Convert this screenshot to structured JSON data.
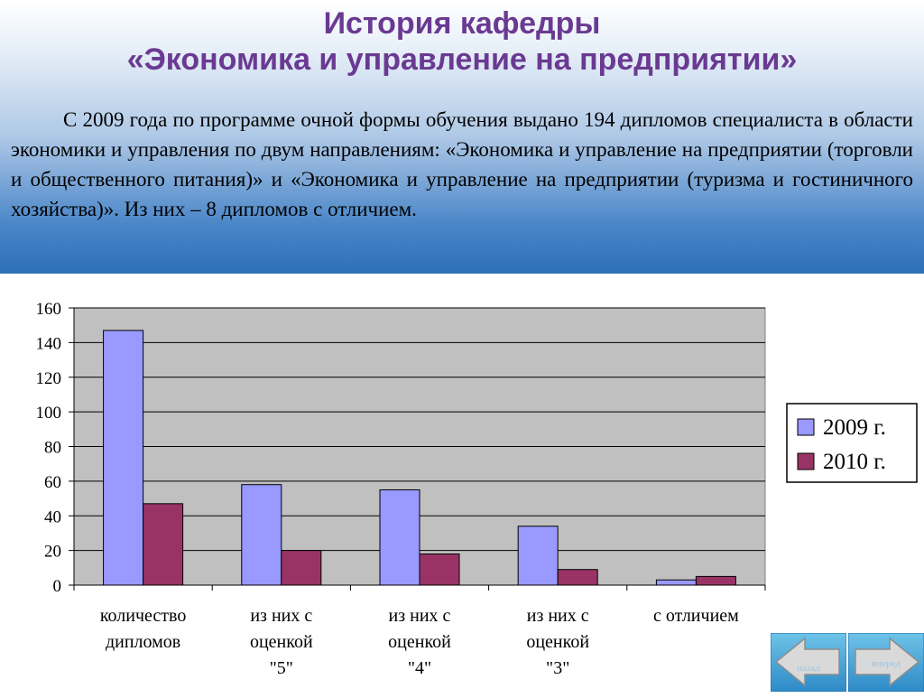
{
  "header": {
    "title_line1": "История кафедры",
    "title_line2": "«Экономика и управление на предприятии»",
    "intro": "С 2009 года по программе очной формы обучения выдано 194 дипломов специалиста в области экономики и управления по двум направлениям: «Экономика и управление на предприятии (торговли и общественного питания)» и «Экономика и управление на предприятии (туризма и гостиничного хозяйства)». Из них – 8 дипломов с отличием."
  },
  "chart_data": {
    "type": "bar",
    "categories": [
      [
        "количество",
        "дипломов"
      ],
      [
        "из них с",
        "оценкой",
        "\"5\""
      ],
      [
        "из них с",
        "оценкой",
        "\"4\""
      ],
      [
        "из них с",
        "оценкой",
        "\"3\""
      ],
      [
        "с отличием"
      ]
    ],
    "series": [
      {
        "name": "2009 г.",
        "values": [
          147,
          58,
          55,
          34,
          3
        ],
        "color": "#9999ff"
      },
      {
        "name": "2010 г.",
        "values": [
          47,
          20,
          18,
          9,
          5
        ],
        "color": "#993366"
      }
    ],
    "ylim": [
      0,
      160
    ],
    "yticks": [
      0,
      20,
      40,
      60,
      80,
      100,
      120,
      140,
      160
    ],
    "grid": true,
    "plot_background": "#c0c0c0",
    "legend_position": "right"
  },
  "nav": {
    "back_label": "назад",
    "forward_label": "вперед"
  }
}
